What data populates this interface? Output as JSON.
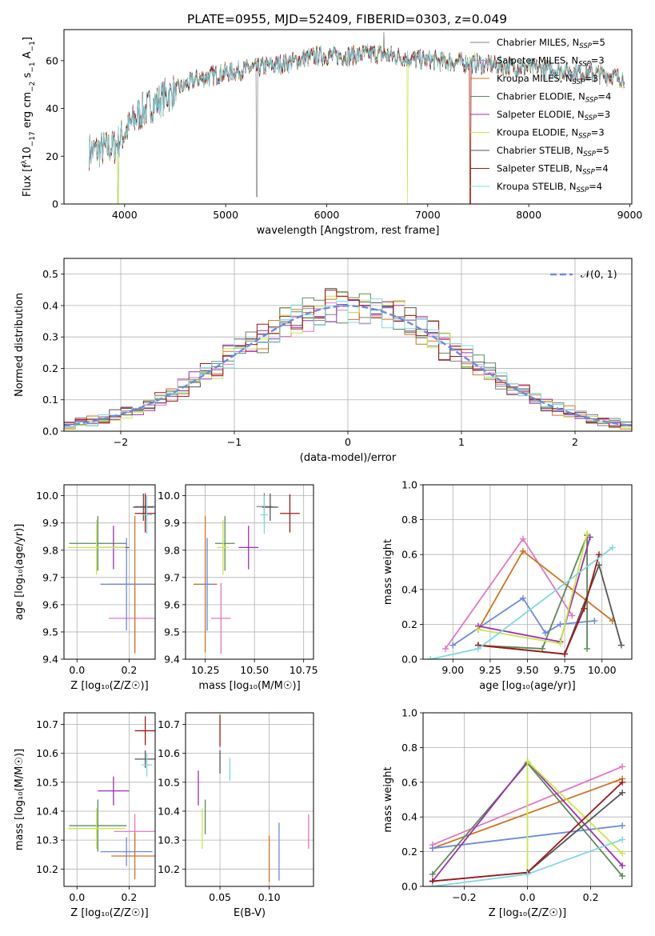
{
  "title": "PLATE=0955, MJD=52409, FIBERID=0303, z=0.049",
  "colors": {
    "chabrier_miles": "#808080",
    "salpeter_miles": "#e377c2",
    "kroupa_miles": "#d2731f",
    "chabrier_elodie": "#5a8a5a",
    "salpeter_elodie": "#9b30b0",
    "kroupa_elodie": "#c8e84a",
    "chabrier_stelib": "#555555",
    "salpeter_stelib": "#a01818",
    "kroupa_stelib": "#7fd8e0",
    "blue": "#6a8be0",
    "normal": "#6a8be0"
  },
  "legend": [
    {
      "name": "Chabrier MILES, N",
      "sub": "SSP",
      "n": "=5",
      "color": "#808080"
    },
    {
      "name": "Salpeter MILES, N",
      "sub": "SSP",
      "n": "=3",
      "color": "#e377c2"
    },
    {
      "name": "Kroupa MILES, N",
      "sub": "SSP",
      "n": "=3",
      "color": "#d2731f"
    },
    {
      "name": "Chabrier ELODIE, N",
      "sub": "SSP",
      "n": "=4",
      "color": "#5a8a5a"
    },
    {
      "name": "Salpeter ELODIE, N",
      "sub": "SSP",
      "n": "=3",
      "color": "#9b30b0"
    },
    {
      "name": "Kroupa ELODIE, N",
      "sub": "SSP",
      "n": "=3",
      "color": "#c8e84a"
    },
    {
      "name": "Chabrier STELIB, N",
      "sub": "SSP",
      "n": "=5",
      "color": "#555555"
    },
    {
      "name": "Salpeter STELIB, N",
      "sub": "SSP",
      "n": "=4",
      "color": "#a01818"
    },
    {
      "name": "Kroupa STELIB, N",
      "sub": "SSP",
      "n": "=4",
      "color": "#7fd8e0"
    }
  ],
  "chart_data": [
    {
      "type": "line",
      "xlabel": "wavelength [Angstrom, rest frame]",
      "ylabel": "Flux [f",
      "ylabel_sub": "λ",
      "ylabel_rest": "10",
      "ylabel_sup1": "−17",
      "ylabel_rest2": " erg cm",
      "ylabel_sup2": "−2",
      "ylabel_rest3": " s",
      "ylabel_sup3": "−1",
      "ylabel_rest4": " A",
      "ylabel_sup4": "−1",
      "ylabel_end": "]",
      "xlim": [
        3400,
        9020
      ],
      "ylim": [
        0,
        73
      ],
      "xticks": [
        4000,
        5000,
        6000,
        7000,
        8000,
        9000
      ],
      "yticks": [
        0,
        20,
        40,
        60
      ],
      "continuum": [
        [
          3650,
          22
        ],
        [
          3900,
          24
        ],
        [
          4000,
          30
        ],
        [
          4150,
          38
        ],
        [
          4400,
          45
        ],
        [
          4700,
          52
        ],
        [
          5000,
          55
        ],
        [
          5300,
          57
        ],
        [
          5600,
          59
        ],
        [
          5900,
          62
        ],
        [
          6200,
          62
        ],
        [
          6500,
          63
        ],
        [
          6800,
          61
        ],
        [
          7100,
          60
        ],
        [
          7400,
          59
        ],
        [
          7700,
          58
        ],
        [
          8000,
          57
        ],
        [
          8300,
          56
        ],
        [
          8600,
          55
        ],
        [
          8900,
          53
        ]
      ]
    },
    {
      "type": "bar",
      "xlabel": "(data-model)/error",
      "ylabel": "Normed distribution",
      "xlim": [
        -2.5,
        2.5
      ],
      "ylim": [
        0,
        0.55
      ],
      "xticks": [
        -2,
        -1,
        0,
        1,
        2
      ],
      "yticks": [
        0.0,
        0.1,
        0.2,
        0.3,
        0.4,
        0.5
      ],
      "legend": "𝒩(0, 1)",
      "bin_width": 0.1,
      "gaussian": {
        "mu": 0,
        "sigma": 1
      }
    },
    {
      "type": "scatter",
      "xlabel": "Z [log₁₀(Z/Z☉)]",
      "ylabel": "age  [log₁₀(age/yr)]",
      "xlim": [
        -0.05,
        0.3
      ],
      "ylim": [
        9.4,
        10.04
      ],
      "xticks": [
        0.0,
        0.2
      ],
      "yticks": [
        9.4,
        9.5,
        9.6,
        9.7,
        9.8,
        9.9,
        10.0
      ],
      "points": [
        {
          "x": 0.262,
          "y": 9.96,
          "xerr": 0.04,
          "yerr": 0.05,
          "c": "#808080"
        },
        {
          "x": 0.222,
          "y": 9.55,
          "xerr": 0.1,
          "yerr": 0.13,
          "c": "#e377c2"
        },
        {
          "x": 0.222,
          "y": 9.675,
          "xerr": 0.1,
          "yerr": 0.25,
          "c": "#d2731f"
        },
        {
          "x": 0.08,
          "y": 9.825,
          "xerr": 0.11,
          "yerr": 0.1,
          "c": "#5a8a5a"
        },
        {
          "x": 0.14,
          "y": 9.81,
          "xerr": 0.06,
          "yerr": 0.08,
          "c": "#9b30b0"
        },
        {
          "x": 0.075,
          "y": 9.81,
          "xerr": 0.11,
          "yerr": 0.1,
          "c": "#c8e84a"
        },
        {
          "x": 0.255,
          "y": 9.958,
          "xerr": 0.04,
          "yerr": 0.05,
          "c": "#555555"
        },
        {
          "x": 0.262,
          "y": 9.935,
          "xerr": 0.04,
          "yerr": 0.07,
          "c": "#a01818"
        },
        {
          "x": 0.268,
          "y": 9.93,
          "xerr": 0.02,
          "yerr": 0.07,
          "c": "#7fd8e0"
        },
        {
          "x": 0.19,
          "y": 9.675,
          "xerr": 0.1,
          "yerr": 0.17,
          "c": "#6a8be0"
        }
      ]
    },
    {
      "type": "scatter",
      "xlabel": "mass [log₁₀(M/M☉)]",
      "ylabel": "",
      "xlim": [
        10.15,
        10.8
      ],
      "ylim": [
        9.4,
        10.04
      ],
      "xticks": [
        10.25,
        10.5,
        10.75
      ],
      "yticks": [
        9.4,
        9.5,
        9.6,
        9.7,
        9.8,
        9.9,
        10.0
      ],
      "points": [
        {
          "x": 10.55,
          "y": 9.96,
          "xerr": 0.04,
          "yerr": 0.05,
          "c": "#808080"
        },
        {
          "x": 10.33,
          "y": 9.55,
          "xerr": 0.05,
          "yerr": 0.13,
          "c": "#e377c2"
        },
        {
          "x": 10.25,
          "y": 9.675,
          "xerr": 0.06,
          "yerr": 0.25,
          "c": "#d2731f"
        },
        {
          "x": 10.35,
          "y": 9.825,
          "xerr": 0.05,
          "yerr": 0.1,
          "c": "#5a8a5a"
        },
        {
          "x": 10.47,
          "y": 9.81,
          "xerr": 0.05,
          "yerr": 0.08,
          "c": "#9b30b0"
        },
        {
          "x": 10.34,
          "y": 9.81,
          "xerr": 0.03,
          "yerr": 0.1,
          "c": "#c8e84a"
        },
        {
          "x": 10.58,
          "y": 9.958,
          "xerr": 0.04,
          "yerr": 0.05,
          "c": "#555555"
        },
        {
          "x": 10.68,
          "y": 9.935,
          "xerr": 0.05,
          "yerr": 0.07,
          "c": "#a01818"
        },
        {
          "x": 10.55,
          "y": 9.93,
          "xerr": 0.02,
          "yerr": 0.07,
          "c": "#7fd8e0"
        },
        {
          "x": 10.26,
          "y": 9.675,
          "xerr": 0.03,
          "yerr": 0.17,
          "c": "#6a8be0"
        }
      ]
    },
    {
      "type": "line",
      "xlabel": "age  [log₁₀(age/yr)]",
      "ylabel": "mass weight",
      "xlim": [
        8.8,
        10.2
      ],
      "ylim": [
        0,
        1.0
      ],
      "xticks": [
        9.0,
        9.25,
        9.5,
        9.75,
        10.0
      ],
      "yticks": [
        0.0,
        0.2,
        0.4,
        0.6,
        0.8,
        1.0
      ],
      "series": [
        {
          "c": "#6a8be0",
          "pts": [
            [
              9.0,
              0.08
            ],
            [
              9.47,
              0.35
            ],
            [
              9.62,
              0.15
            ],
            [
              9.72,
              0.2
            ],
            [
              9.95,
              0.22
            ]
          ]
        },
        {
          "c": "#e377c2",
          "pts": [
            [
              8.95,
              0.06
            ],
            [
              9.47,
              0.69
            ],
            [
              9.8,
              0.25
            ]
          ]
        },
        {
          "c": "#d2731f",
          "pts": [
            [
              9.17,
              0.17
            ],
            [
              9.47,
              0.62
            ],
            [
              10.07,
              0.22
            ]
          ]
        },
        {
          "c": "#5a8a5a",
          "pts": [
            [
              9.17,
              0.08
            ],
            [
              9.6,
              0.06
            ],
            [
              9.9,
              0.71
            ],
            [
              9.9,
              0.06
            ]
          ]
        },
        {
          "c": "#9b30b0",
          "pts": [
            [
              9.17,
              0.19
            ],
            [
              9.72,
              0.1
            ],
            [
              9.92,
              0.7
            ]
          ]
        },
        {
          "c": "#c8e84a",
          "pts": [
            [
              9.17,
              0.17
            ],
            [
              9.72,
              0.09
            ],
            [
              9.9,
              0.72
            ]
          ]
        },
        {
          "c": "#555555",
          "pts": [
            [
              9.17,
              0.08
            ],
            [
              9.75,
              0.03
            ],
            [
              9.98,
              0.54
            ],
            [
              10.13,
              0.08
            ]
          ]
        },
        {
          "c": "#a01818",
          "pts": [
            [
              9.17,
              0.08
            ],
            [
              9.75,
              0.03
            ],
            [
              9.88,
              0.29
            ],
            [
              9.98,
              0.6
            ]
          ]
        },
        {
          "c": "#7fd8e0",
          "pts": [
            [
              8.85,
              0.0
            ],
            [
              9.17,
              0.06
            ],
            [
              10.07,
              0.64
            ]
          ]
        }
      ]
    },
    {
      "type": "scatter",
      "xlabel": "Z [log₁₀(Z/Z☉)]",
      "ylabel": "mass [log₁₀(M/M☉)]",
      "xlim": [
        -0.05,
        0.3
      ],
      "ylim": [
        10.14,
        10.74
      ],
      "xticks": [
        0.0,
        0.2
      ],
      "yticks": [
        10.2,
        10.3,
        10.4,
        10.5,
        10.6,
        10.7
      ],
      "points": [
        {
          "x": 0.262,
          "y": 10.58,
          "xerr": 0.04,
          "yerr": 0.03,
          "c": "#555555"
        },
        {
          "x": 0.262,
          "y": 10.678,
          "xerr": 0.04,
          "yerr": 0.05,
          "c": "#a01818"
        },
        {
          "x": 0.268,
          "y": 10.56,
          "xerr": 0.02,
          "yerr": 0.04,
          "c": "#7fd8e0"
        },
        {
          "x": 0.14,
          "y": 10.47,
          "xerr": 0.06,
          "yerr": 0.05,
          "c": "#9b30b0"
        },
        {
          "x": 0.08,
          "y": 10.35,
          "xerr": 0.11,
          "yerr": 0.09,
          "c": "#5a8a5a"
        },
        {
          "x": 0.075,
          "y": 10.34,
          "xerr": 0.11,
          "yerr": 0.07,
          "c": "#c8e84a"
        },
        {
          "x": 0.222,
          "y": 10.33,
          "xerr": 0.08,
          "yerr": 0.06,
          "c": "#e377c2"
        },
        {
          "x": 0.19,
          "y": 10.26,
          "xerr": 0.1,
          "yerr": 0.05,
          "c": "#6a8be0"
        },
        {
          "x": 0.222,
          "y": 10.245,
          "xerr": 0.09,
          "yerr": 0.08,
          "c": "#d2731f"
        }
      ]
    },
    {
      "type": "scatter",
      "xlabel": "E(B-V)",
      "ylabel": "",
      "xlim": [
        0.015,
        0.145
      ],
      "ylim": [
        10.14,
        10.74
      ],
      "xticks": [
        0.05,
        0.1
      ],
      "yticks": [
        10.2,
        10.3,
        10.4,
        10.5,
        10.6,
        10.7
      ],
      "points": [
        {
          "x": 0.05,
          "y": 10.678,
          "yerr": 0.055,
          "c": "#a01818"
        },
        {
          "x": 0.05,
          "y": 10.57,
          "yerr": 0.04,
          "c": "#555555"
        },
        {
          "x": 0.06,
          "y": 10.545,
          "yerr": 0.04,
          "c": "#7fd8e0"
        },
        {
          "x": 0.028,
          "y": 10.48,
          "yerr": 0.06,
          "c": "#9b30b0"
        },
        {
          "x": 0.035,
          "y": 10.38,
          "yerr": 0.06,
          "c": "#5a8a5a"
        },
        {
          "x": 0.032,
          "y": 10.34,
          "yerr": 0.07,
          "c": "#c8e84a"
        },
        {
          "x": 0.1,
          "y": 10.235,
          "yerr": 0.08,
          "c": "#d2731f"
        },
        {
          "x": 0.11,
          "y": 10.26,
          "yerr": 0.1,
          "c": "#6a8be0"
        },
        {
          "x": 0.14,
          "y": 10.33,
          "yerr": 0.06,
          "c": "#e377c2"
        }
      ]
    },
    {
      "type": "line",
      "xlabel": "Z [log₁₀(Z/Z☉)]",
      "ylabel": "mass weight",
      "xlim": [
        -0.33,
        0.33
      ],
      "ylim": [
        0,
        1.0
      ],
      "xticks": [
        -0.2,
        0.0,
        0.2
      ],
      "yticks": [
        0.0,
        0.2,
        0.4,
        0.6,
        0.8,
        1.0
      ],
      "series": [
        {
          "c": "#e377c2",
          "pts": [
            [
              -0.3,
              0.24
            ],
            [
              0.3,
              0.69
            ]
          ]
        },
        {
          "c": "#d2731f",
          "pts": [
            [
              -0.3,
              0.22
            ],
            [
              0.3,
              0.62
            ]
          ]
        },
        {
          "c": "#6a8be0",
          "pts": [
            [
              -0.3,
              0.22
            ],
            [
              0.3,
              0.35
            ]
          ]
        },
        {
          "c": "#5a8a5a",
          "pts": [
            [
              -0.3,
              0.07
            ],
            [
              0.0,
              0.71
            ],
            [
              0.3,
              0.06
            ]
          ]
        },
        {
          "c": "#9b30b0",
          "pts": [
            [
              -0.3,
              0.03
            ],
            [
              0.0,
              0.72
            ],
            [
              0.3,
              0.12
            ]
          ]
        },
        {
          "c": "#c8e84a",
          "pts": [
            [
              0.0,
              0.07
            ],
            [
              0.0,
              0.72
            ],
            [
              0.3,
              0.19
            ]
          ]
        },
        {
          "c": "#555555",
          "pts": [
            [
              -0.3,
              0.03
            ],
            [
              0.0,
              0.08
            ],
            [
              0.3,
              0.54
            ]
          ]
        },
        {
          "c": "#a01818",
          "pts": [
            [
              -0.3,
              0.03
            ],
            [
              0.0,
              0.08
            ],
            [
              0.3,
              0.6
            ]
          ]
        },
        {
          "c": "#7fd8e0",
          "pts": [
            [
              -0.3,
              0.0
            ],
            [
              0.0,
              0.07
            ],
            [
              0.3,
              0.27
            ]
          ]
        }
      ]
    }
  ]
}
